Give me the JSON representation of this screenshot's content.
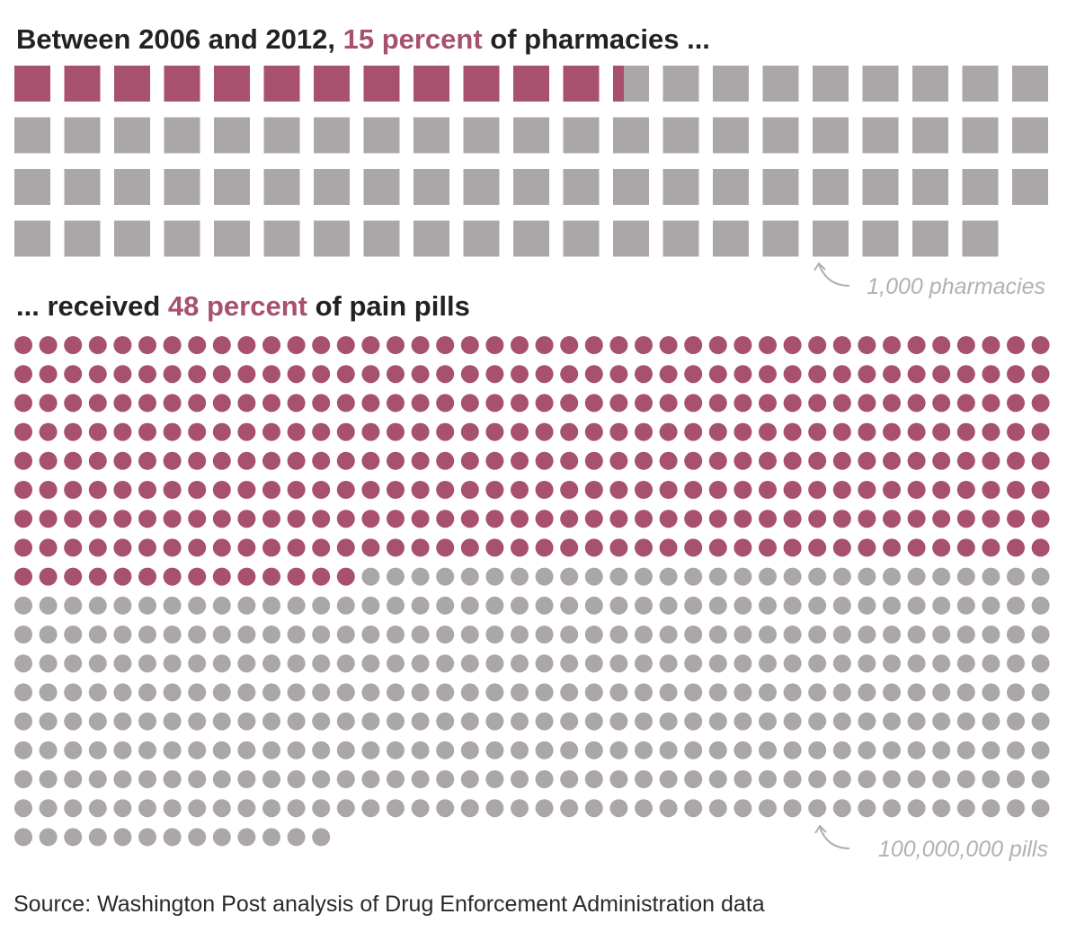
{
  "headline_1": {
    "before": "Between 2006 and 2012, ",
    "highlight": "15 percent",
    "after": " of pharmacies ..."
  },
  "headline_2": {
    "before": "... received ",
    "highlight": "48 percent",
    "after": " of pain pills"
  },
  "source": "Source: Washington Post analysis of Drug Enforcement Administration data",
  "colors": {
    "highlight": "#a7516e",
    "rest": "#aba7a8",
    "text": "#222222",
    "annotation": "#b4b0b1"
  },
  "chart_data": [
    {
      "type": "waffle",
      "unit_shape": "square",
      "unit_label": "1,000 pharmacies",
      "unit_value": 1000,
      "total_units": 83,
      "highlighted_units": 12.3,
      "highlighted_percent": 15,
      "highlight_label": "15 percent"
    },
    {
      "type": "waffle",
      "unit_shape": "circle",
      "unit_label": "100,000,000 pills",
      "unit_value": 100000000,
      "total_units": 727,
      "highlighted_units": 350,
      "highlighted_percent": 48,
      "highlight_label": "48 percent"
    }
  ]
}
